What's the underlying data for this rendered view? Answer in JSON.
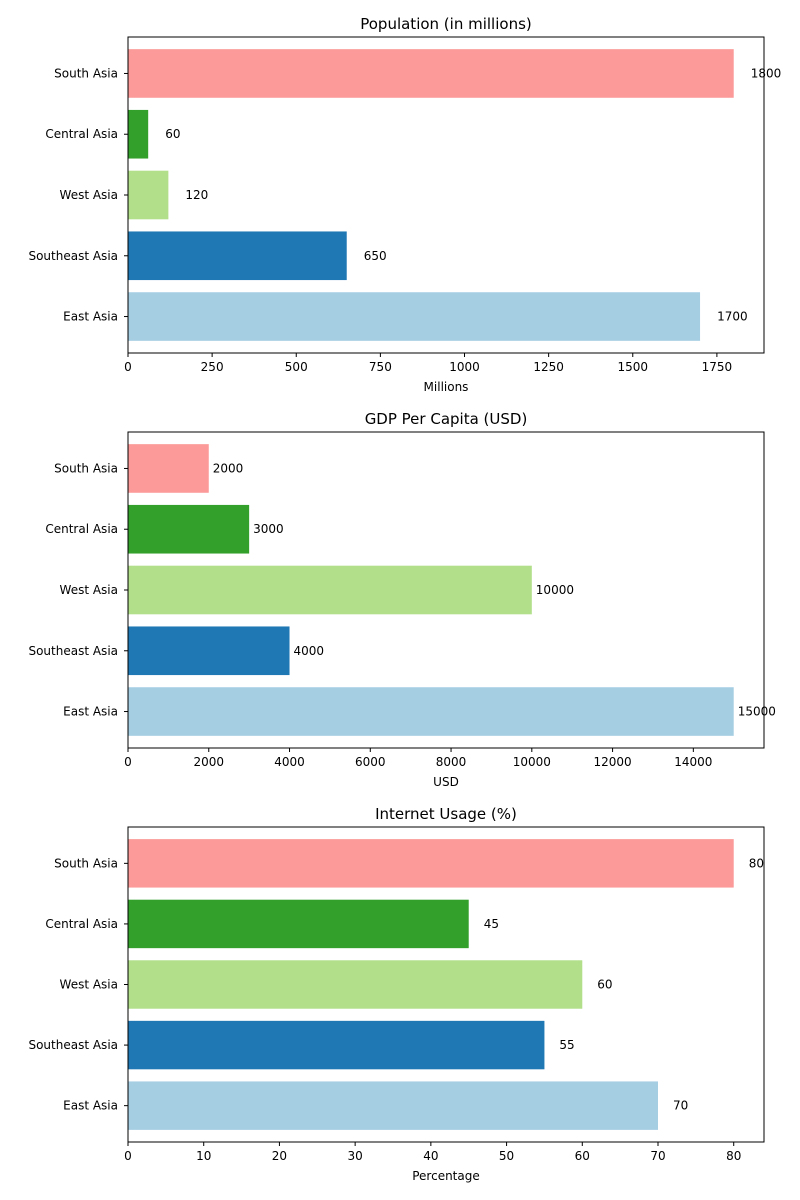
{
  "chart_data": [
    {
      "type": "bar",
      "orientation": "horizontal",
      "title": "Population (in millions)",
      "xlabel": "Millions",
      "ylabel": "",
      "categories": [
        "East Asia",
        "Southeast Asia",
        "West Asia",
        "Central Asia",
        "South Asia"
      ],
      "values": [
        1700,
        650,
        120,
        60,
        1800
      ],
      "colors": [
        "#a6cee3",
        "#1f78b4",
        "#b2df8a",
        "#33a02c",
        "#fb9a99"
      ],
      "xlim": [
        0,
        1890
      ],
      "xticks": [
        0,
        250,
        500,
        750,
        1000,
        1250,
        1500,
        1750
      ],
      "xtick_labels": [
        "0",
        "250",
        "500",
        "750",
        "1000",
        "1250",
        "1500",
        "1750"
      ],
      "value_labels": [
        "1700",
        "650",
        "120",
        "60",
        "1800"
      ],
      "grid": false
    },
    {
      "type": "bar",
      "orientation": "horizontal",
      "title": "GDP Per Capita (USD)",
      "xlabel": "USD",
      "ylabel": "",
      "categories": [
        "East Asia",
        "Southeast Asia",
        "West Asia",
        "Central Asia",
        "South Asia"
      ],
      "values": [
        15000,
        4000,
        10000,
        3000,
        2000
      ],
      "colors": [
        "#a6cee3",
        "#1f78b4",
        "#b2df8a",
        "#33a02c",
        "#fb9a99"
      ],
      "xlim": [
        0,
        15750
      ],
      "xticks": [
        0,
        2000,
        4000,
        6000,
        8000,
        10000,
        12000,
        14000
      ],
      "xtick_labels": [
        "0",
        "2000",
        "4000",
        "6000",
        "8000",
        "10000",
        "12000",
        "14000"
      ],
      "value_labels": [
        "15000",
        "4000",
        "10000",
        "3000",
        "2000"
      ],
      "grid": false
    },
    {
      "type": "bar",
      "orientation": "horizontal",
      "title": "Internet Usage (%)",
      "xlabel": "Percentage",
      "ylabel": "",
      "categories": [
        "East Asia",
        "Southeast Asia",
        "West Asia",
        "Central Asia",
        "South Asia"
      ],
      "values": [
        70,
        55,
        60,
        45,
        80
      ],
      "colors": [
        "#a6cee3",
        "#1f78b4",
        "#b2df8a",
        "#33a02c",
        "#fb9a99"
      ],
      "xlim": [
        0,
        84
      ],
      "xticks": [
        0,
        10,
        20,
        30,
        40,
        50,
        60,
        70,
        80
      ],
      "xtick_labels": [
        "0",
        "10",
        "20",
        "30",
        "40",
        "50",
        "60",
        "70",
        "80"
      ],
      "value_labels": [
        "70",
        "55",
        "60",
        "45",
        "80"
      ],
      "grid": false
    }
  ]
}
